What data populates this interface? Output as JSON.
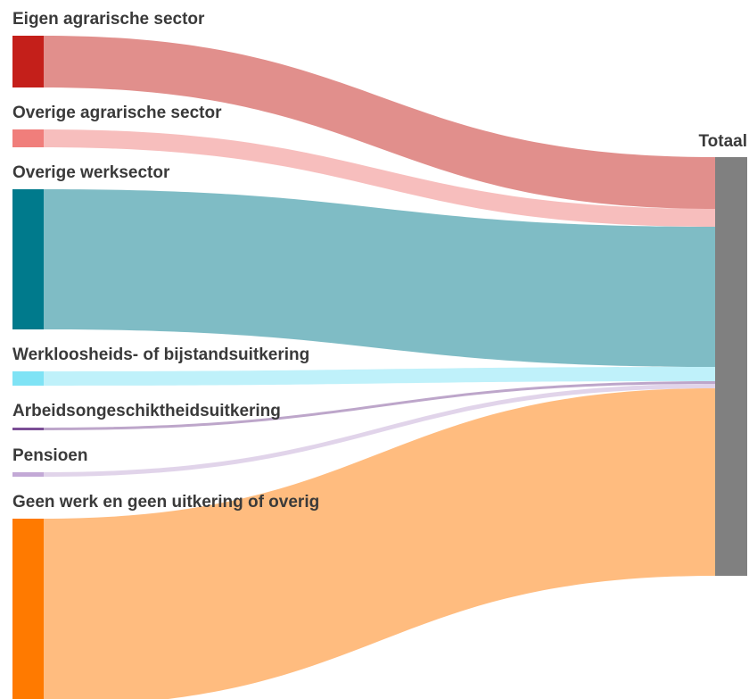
{
  "chart_data": {
    "type": "sankey",
    "categories": [
      "Eigen agrarische sector",
      "Overige agrarische sector",
      "Overige werksector",
      "Werkloosheids- of bijstandsuitkering",
      "Arbeidsongeschiktheidsuitkering",
      "Pensioen",
      "Geen werk en geen uitkering of overig"
    ],
    "values": [
      58,
      20,
      157,
      16,
      3,
      5,
      210
    ],
    "colors": [
      "#c41f1a",
      "#f07e7b",
      "#007a8c",
      "#7fe3f5",
      "#7b4e96",
      "#c3a9d6",
      "#ff7a00"
    ],
    "target": "Totaal",
    "target_color": "#808080"
  }
}
